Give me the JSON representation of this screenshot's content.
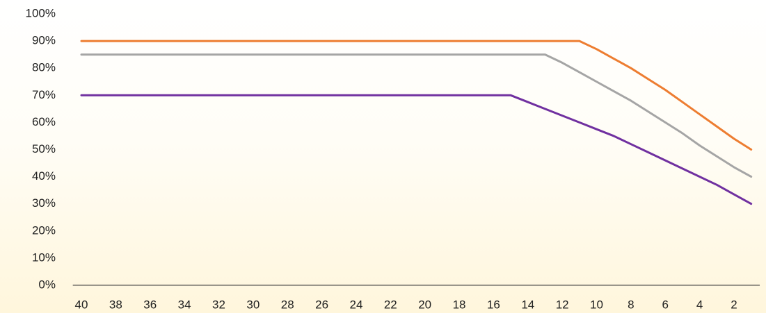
{
  "chart_data": {
    "type": "line",
    "categories": [
      40,
      null,
      38,
      null,
      36,
      null,
      34,
      null,
      32,
      null,
      30,
      null,
      28,
      null,
      26,
      null,
      24,
      null,
      22,
      null,
      20,
      null,
      18,
      null,
      16,
      null,
      14,
      null,
      12,
      null,
      10,
      null,
      8,
      null,
      6,
      null,
      4,
      null,
      2,
      null
    ],
    "series": [
      {
        "color": "#ed7d31",
        "values": [
          90,
          90,
          90,
          90,
          90,
          90,
          90,
          90,
          90,
          90,
          90,
          90,
          90,
          90,
          90,
          90,
          90,
          90,
          90,
          90,
          90,
          90,
          90,
          90,
          90,
          90,
          90,
          90,
          90,
          90,
          87,
          83.5,
          80,
          76,
          72,
          67.5,
          63,
          58.5,
          54,
          50
        ]
      },
      {
        "color": "#a5a5a5",
        "values": [
          85,
          85,
          85,
          85,
          85,
          85,
          85,
          85,
          85,
          85,
          85,
          85,
          85,
          85,
          85,
          85,
          85,
          85,
          85,
          85,
          85,
          85,
          85,
          85,
          85,
          85,
          85,
          85,
          82,
          78.5,
          75,
          71.5,
          68,
          64,
          60,
          56,
          51.5,
          47.5,
          43.5,
          40
        ]
      },
      {
        "color": "#7030a0",
        "values": [
          70,
          70,
          70,
          70,
          70,
          70,
          70,
          70,
          70,
          70,
          70,
          70,
          70,
          70,
          70,
          70,
          70,
          70,
          70,
          70,
          70,
          70,
          70,
          70,
          70,
          70,
          67.5,
          65,
          62.5,
          60,
          57.5,
          55,
          52,
          49,
          46,
          43,
          40,
          37,
          33.5,
          30
        ]
      }
    ],
    "ylim": [
      0,
      100
    ],
    "yticks": [
      {
        "value": 0,
        "label": "0%"
      },
      {
        "value": 10,
        "label": "10%"
      },
      {
        "value": 20,
        "label": "20%"
      },
      {
        "value": 30,
        "label": "30%"
      },
      {
        "value": 40,
        "label": "40%"
      },
      {
        "value": 50,
        "label": "50%"
      },
      {
        "value": 60,
        "label": "60%"
      },
      {
        "value": 70,
        "label": "70%"
      },
      {
        "value": 80,
        "label": "80%"
      },
      {
        "value": 90,
        "label": "90%"
      },
      {
        "value": 100,
        "label": "100%"
      }
    ],
    "grid": false
  }
}
